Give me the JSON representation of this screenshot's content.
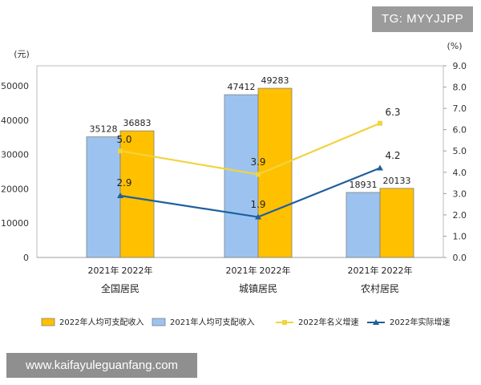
{
  "watermarks": {
    "top_right": "TG: MYYJJPP",
    "bottom_left": "www.kaifayuleguanfang.com"
  },
  "chart_data": {
    "type": "bar",
    "groups": [
      "全国居民",
      "城镇居民",
      "农村居民"
    ],
    "year_labels": [
      "2021年",
      "2022年"
    ],
    "left_axis": {
      "unit_label": "(元)",
      "ylim": [
        0,
        50000
      ],
      "ticks": [
        "0",
        "10000",
        "20000",
        "30000",
        "40000",
        "50000"
      ]
    },
    "right_axis": {
      "unit_label": "(%)",
      "ylim": [
        0,
        9
      ],
      "ticks": [
        "0.0",
        "1.0",
        "2.0",
        "3.0",
        "4.0",
        "5.0",
        "6.0",
        "7.0",
        "8.0",
        "9.0"
      ]
    },
    "series": [
      {
        "name": "2021年人均可支配收入",
        "kind": "bar",
        "axis": "left",
        "color": "#9cc3f0",
        "values": [
          35128,
          47412,
          18931
        ],
        "labels": [
          "35128",
          "47412",
          "18931"
        ]
      },
      {
        "name": "2022年人均可支配收入",
        "kind": "bar",
        "axis": "left",
        "color": "#ffc000",
        "values": [
          36883,
          49283,
          20133
        ],
        "labels": [
          "36883",
          "49283",
          "20133"
        ]
      },
      {
        "name": "2022年名义增速",
        "kind": "line",
        "axis": "right",
        "color": "#f2d33f",
        "values": [
          5.0,
          3.9,
          6.3
        ],
        "labels": [
          "5.0",
          "3.9",
          "6.3"
        ]
      },
      {
        "name": "2022年实际增速",
        "kind": "line",
        "axis": "right",
        "color": "#1f5f9e",
        "values": [
          2.9,
          1.9,
          4.2
        ],
        "labels": [
          "2.9",
          "1.9",
          "4.2"
        ]
      }
    ],
    "legend_order": [
      1,
      0,
      2,
      3
    ],
    "grid": false,
    "legend_position": "bottom"
  }
}
